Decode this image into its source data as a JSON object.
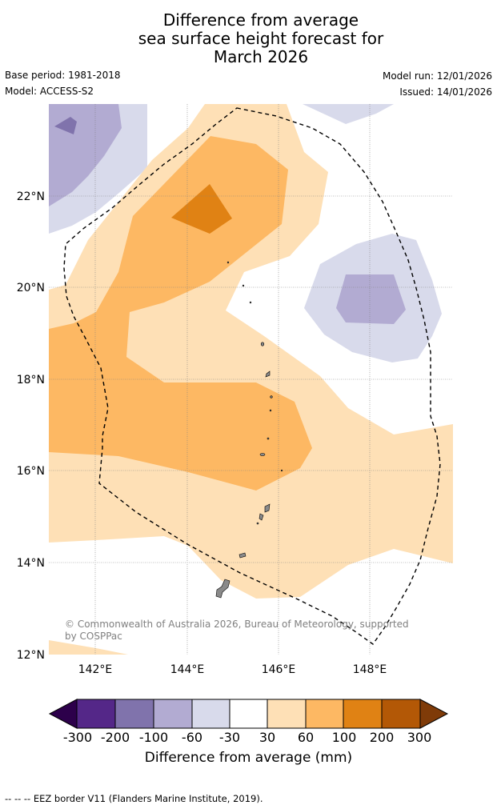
{
  "title": {
    "line1": "Difference from average",
    "line2": "sea surface height forecast for",
    "line3": "March 2026"
  },
  "meta": {
    "base_period": "Base period: 1981-2018",
    "model": "Model: ACCESS-S2",
    "model_run": "Model run: 12/01/2026",
    "issued": "Issued: 14/01/2026"
  },
  "map": {
    "lat_labels": [
      "22°N",
      "20°N",
      "18°N",
      "16°N",
      "14°N",
      "12°N"
    ],
    "lon_labels": [
      "142°E",
      "144°E",
      "146°E",
      "148°E"
    ],
    "copyright_line1": "© Commonwealth of Australia 2026, Bureau of Meteorology, supported",
    "copyright_line2": "by COSPPac"
  },
  "colorbar": {
    "ticks": [
      "-300",
      "-200",
      "-100",
      "-60",
      "-30",
      "30",
      "60",
      "100",
      "200",
      "300"
    ],
    "colors": {
      "below_300": "#2d004b",
      "m300_m200": "#542788",
      "m200_m100": "#8073ac",
      "m100_m60": "#b2abd2",
      "m60_m30": "#d8daeb",
      "m30_30": "#ffffff",
      "p30_60": "#fee0b6",
      "p60_100": "#fdb863",
      "p100_200": "#e08214",
      "p200_300": "#b35806",
      "above_300": "#7f3b08"
    },
    "label": "Difference from average (mm)"
  },
  "footnote": "--  --  -- EEZ border V11 (Flanders Marine Institute, 2019)."
}
